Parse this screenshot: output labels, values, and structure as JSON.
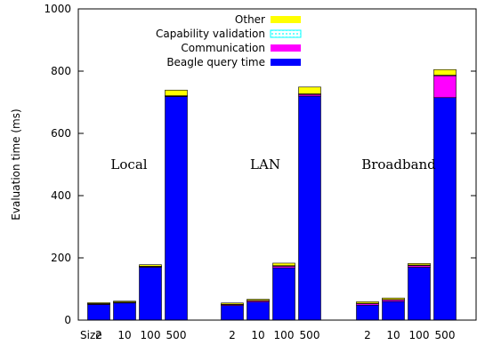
{
  "chart_data": {
    "type": "bar",
    "stacked": true,
    "ylabel": "Evaluation time (ms)",
    "ylim": [
      0,
      1000
    ],
    "yticks": [
      0,
      200,
      400,
      600,
      800,
      1000
    ],
    "x_prefix_label": "Size",
    "sizes": [
      "2",
      "10",
      "100",
      "500"
    ],
    "groups": [
      "Local",
      "LAN",
      "Broadband"
    ],
    "series": [
      {
        "name": "Beagle query time",
        "color": "#0000ff",
        "values": [
          [
            50,
            55,
            170,
            718
          ],
          [
            47,
            58,
            168,
            720
          ],
          [
            48,
            60,
            170,
            715
          ]
        ]
      },
      {
        "name": "Communication",
        "color": "#ff00ff",
        "values": [
          [
            2,
            2,
            2,
            2
          ],
          [
            3,
            4,
            5,
            5
          ],
          [
            5,
            5,
            5,
            70
          ]
        ]
      },
      {
        "name": "Capability validation",
        "color": "#00ffff",
        "pattern": "dotted",
        "values": [
          [
            1,
            1,
            1,
            1
          ],
          [
            1,
            1,
            2,
            2
          ],
          [
            1,
            1,
            2,
            2
          ]
        ]
      },
      {
        "name": "Other",
        "color": "#ffff00",
        "values": [
          [
            3,
            3,
            5,
            18
          ],
          [
            4,
            4,
            8,
            22
          ],
          [
            5,
            5,
            5,
            18
          ]
        ]
      }
    ],
    "legend_position": "top-right",
    "grid": false
  }
}
